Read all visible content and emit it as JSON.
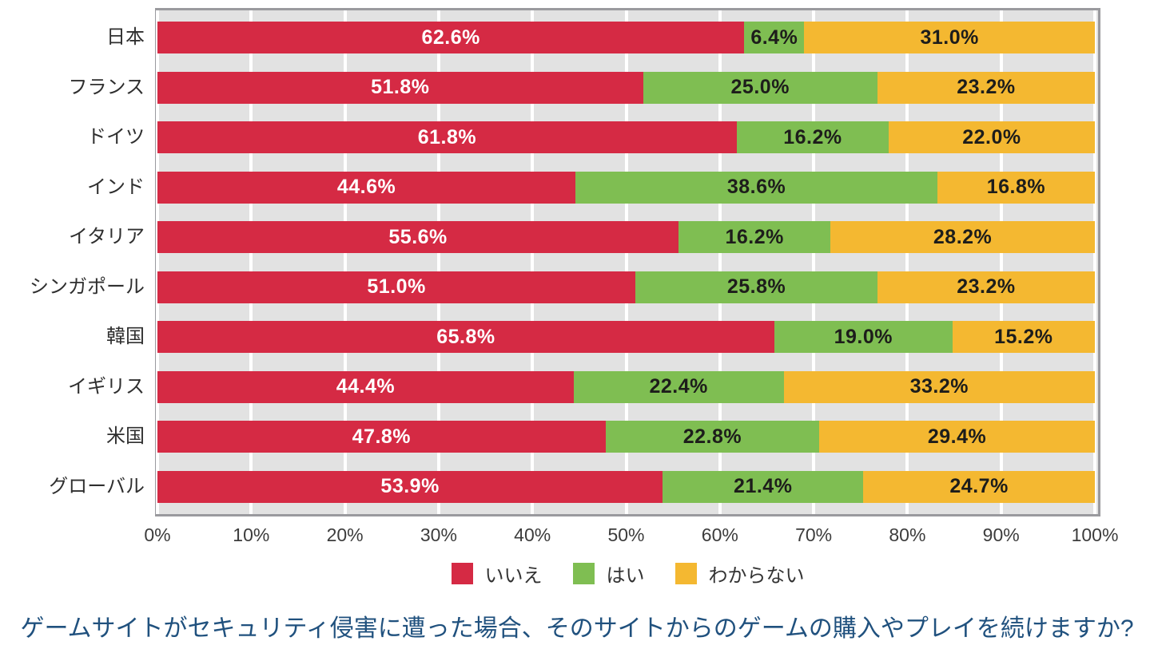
{
  "chart_data": {
    "type": "bar",
    "orientation": "horizontal",
    "stacked": true,
    "unit": "%",
    "title": "",
    "caption": "ゲームサイトがセキュリティ侵害に遭った場合、そのサイトからのゲームの購入やプレイを続けますか?",
    "categories": [
      "日本",
      "フランス",
      "ドイツ",
      "インド",
      "イタリア",
      "シンガポール",
      "韓国",
      "イギリス",
      "米国",
      "グローバル"
    ],
    "series": [
      {
        "key": "no",
        "name": "いいえ",
        "color": "#d52a44",
        "label_color": "#ffffff",
        "values": [
          62.6,
          51.8,
          61.8,
          44.6,
          55.6,
          51.0,
          65.8,
          44.4,
          47.8,
          53.9
        ]
      },
      {
        "key": "yes",
        "name": "はい",
        "color": "#7fbe52",
        "label_color": "#1d1d1b",
        "values": [
          6.4,
          25.0,
          16.2,
          38.6,
          16.2,
          25.8,
          19.0,
          22.4,
          22.8,
          21.4
        ]
      },
      {
        "key": "dont-know",
        "name": "わからない",
        "color": "#f4b831",
        "label_color": "#1d1d1b",
        "values": [
          31.0,
          23.2,
          22.0,
          16.8,
          28.2,
          23.2,
          15.2,
          33.2,
          29.4,
          24.7
        ]
      }
    ],
    "x_axis": {
      "min": 0,
      "max": 100,
      "tick_labels": [
        "0%",
        "10%",
        "20%",
        "30%",
        "40%",
        "50%",
        "60%",
        "70%",
        "80%",
        "90%",
        "100%"
      ],
      "grid": true
    },
    "legend_position": "bottom",
    "colors": {
      "plot_background": "#e2e2e2",
      "plot_border": "#9a9a9e",
      "grid_line": "#ffffff",
      "axis_text": "#3c3c3c",
      "category_text": "#2f2f2f",
      "caption_text": "#20517e"
    }
  }
}
